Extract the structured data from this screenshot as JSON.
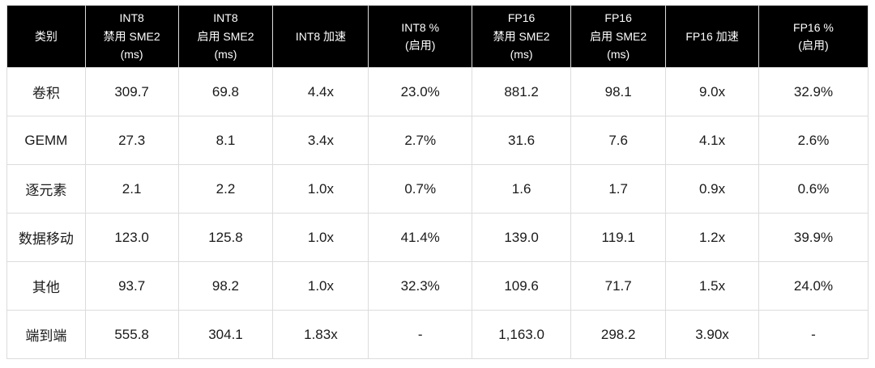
{
  "colors": {
    "header_bg": "#000000",
    "header_text": "#ffffff",
    "body_text": "#1a1a1a",
    "grid_border": "#dcdcdc",
    "page_bg": "#ffffff"
  },
  "chart_data": {
    "type": "table",
    "columns": [
      "类别",
      "INT8\n禁用 SME2\n(ms)",
      "INT8\n启用 SME2\n(ms)",
      "INT8 加速",
      "INT8 %\n(启用)",
      "FP16\n禁用 SME2\n(ms)",
      "FP16\n启用 SME2\n(ms)",
      "FP16 加速",
      "FP16 %\n(启用)"
    ],
    "rows": [
      [
        "卷积",
        "309.7",
        "69.8",
        "4.4x",
        "23.0%",
        "881.2",
        "98.1",
        "9.0x",
        "32.9%"
      ],
      [
        "GEMM",
        "27.3",
        "8.1",
        "3.4x",
        "2.7%",
        "31.6",
        "7.6",
        "4.1x",
        "2.6%"
      ],
      [
        "逐元素",
        "2.1",
        "2.2",
        "1.0x",
        "0.7%",
        "1.6",
        "1.7",
        "0.9x",
        "0.6%"
      ],
      [
        "数据移动",
        "123.0",
        "125.8",
        "1.0x",
        "41.4%",
        "139.0",
        "119.1",
        "1.2x",
        "39.9%"
      ],
      [
        "其他",
        "93.7",
        "98.2",
        "1.0x",
        "32.3%",
        "109.6",
        "71.7",
        "1.5x",
        "24.0%"
      ],
      [
        "端到端",
        "555.8",
        "304.1",
        "1.83x",
        "-",
        "1,163.0",
        "298.2",
        "3.90x",
        "-"
      ]
    ]
  }
}
